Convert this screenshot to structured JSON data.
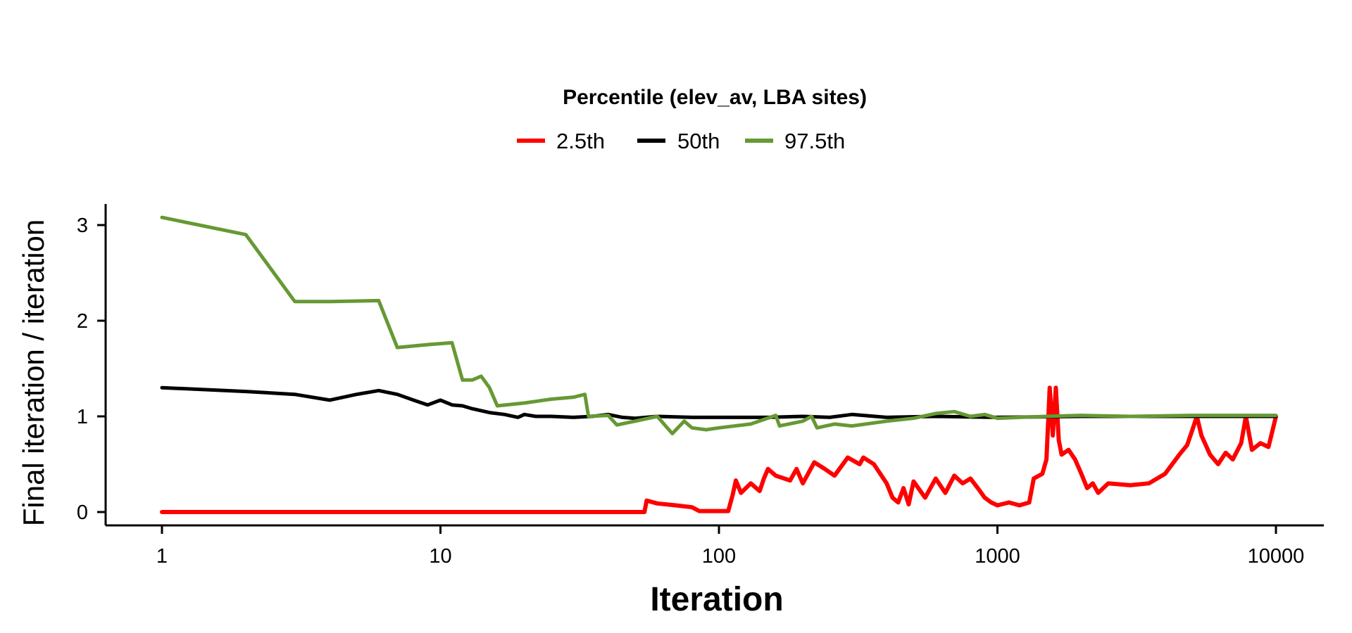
{
  "chart_data": {
    "type": "line",
    "title": "",
    "xlabel": "Iteration",
    "ylabel": "Final iteration / iteration",
    "x_scale": "log",
    "xlim": [
      1,
      10000
    ],
    "ylim": [
      0,
      3.2
    ],
    "x_ticks": [
      1,
      10,
      100,
      1000,
      10000
    ],
    "x_tick_labels": [
      "1",
      "10",
      "100",
      "1000",
      "10000"
    ],
    "y_ticks": [
      0,
      1,
      2,
      3
    ],
    "y_tick_labels": [
      "0",
      "1",
      "2",
      "3"
    ],
    "grid": false,
    "legend": {
      "title": "Percentile (elev_av, LBA sites)",
      "placement": "top-center",
      "entries": [
        "2.5th",
        "50th",
        "97.5th"
      ]
    },
    "series": [
      {
        "name": "2.5th",
        "color": "#ff0000",
        "points": [
          [
            1,
            0
          ],
          [
            50,
            0
          ],
          [
            54,
            0
          ],
          [
            55,
            0.12
          ],
          [
            60,
            0.09
          ],
          [
            70,
            0.07
          ],
          [
            80,
            0.05
          ],
          [
            85,
            0.01
          ],
          [
            108,
            0.01
          ],
          [
            112,
            0.18
          ],
          [
            115,
            0.33
          ],
          [
            120,
            0.2
          ],
          [
            130,
            0.3
          ],
          [
            140,
            0.22
          ],
          [
            145,
            0.35
          ],
          [
            150,
            0.45
          ],
          [
            160,
            0.38
          ],
          [
            180,
            0.33
          ],
          [
            190,
            0.45
          ],
          [
            200,
            0.3
          ],
          [
            220,
            0.52
          ],
          [
            240,
            0.45
          ],
          [
            260,
            0.38
          ],
          [
            290,
            0.57
          ],
          [
            320,
            0.5
          ],
          [
            330,
            0.57
          ],
          [
            360,
            0.5
          ],
          [
            400,
            0.3
          ],
          [
            420,
            0.15
          ],
          [
            440,
            0.1
          ],
          [
            460,
            0.25
          ],
          [
            480,
            0.08
          ],
          [
            500,
            0.32
          ],
          [
            550,
            0.15
          ],
          [
            600,
            0.35
          ],
          [
            650,
            0.2
          ],
          [
            700,
            0.38
          ],
          [
            750,
            0.3
          ],
          [
            800,
            0.35
          ],
          [
            850,
            0.25
          ],
          [
            900,
            0.15
          ],
          [
            950,
            0.1
          ],
          [
            1000,
            0.07
          ],
          [
            1100,
            0.1
          ],
          [
            1200,
            0.07
          ],
          [
            1300,
            0.1
          ],
          [
            1350,
            0.35
          ],
          [
            1450,
            0.4
          ],
          [
            1500,
            0.55
          ],
          [
            1540,
            1.3
          ],
          [
            1580,
            0.8
          ],
          [
            1620,
            1.3
          ],
          [
            1660,
            0.75
          ],
          [
            1700,
            0.6
          ],
          [
            1800,
            0.65
          ],
          [
            1900,
            0.55
          ],
          [
            2000,
            0.4
          ],
          [
            2100,
            0.25
          ],
          [
            2200,
            0.3
          ],
          [
            2300,
            0.2
          ],
          [
            2500,
            0.3
          ],
          [
            3000,
            0.28
          ],
          [
            3500,
            0.3
          ],
          [
            4000,
            0.4
          ],
          [
            4500,
            0.6
          ],
          [
            4800,
            0.7
          ],
          [
            5000,
            0.85
          ],
          [
            5200,
            1.0
          ],
          [
            5400,
            0.8
          ],
          [
            5800,
            0.6
          ],
          [
            6200,
            0.5
          ],
          [
            6600,
            0.62
          ],
          [
            7000,
            0.55
          ],
          [
            7500,
            0.72
          ],
          [
            7800,
            1.0
          ],
          [
            8200,
            0.65
          ],
          [
            8800,
            0.72
          ],
          [
            9400,
            0.68
          ],
          [
            10000,
            1.0
          ]
        ]
      },
      {
        "name": "50th",
        "color": "#000000",
        "points": [
          [
            1,
            1.3
          ],
          [
            2,
            1.26
          ],
          [
            3,
            1.23
          ],
          [
            4,
            1.17
          ],
          [
            5,
            1.23
          ],
          [
            6,
            1.27
          ],
          [
            7,
            1.23
          ],
          [
            8,
            1.17
          ],
          [
            9,
            1.12
          ],
          [
            10,
            1.17
          ],
          [
            11,
            1.12
          ],
          [
            12,
            1.11
          ],
          [
            13,
            1.08
          ],
          [
            15,
            1.04
          ],
          [
            17,
            1.02
          ],
          [
            19,
            0.99
          ],
          [
            20,
            1.02
          ],
          [
            22,
            1.0
          ],
          [
            25,
            1.0
          ],
          [
            30,
            0.99
          ],
          [
            35,
            1.0
          ],
          [
            40,
            1.02
          ],
          [
            45,
            0.99
          ],
          [
            50,
            0.98
          ],
          [
            60,
            1.0
          ],
          [
            80,
            0.99
          ],
          [
            100,
            0.99
          ],
          [
            150,
            0.99
          ],
          [
            200,
            1.0
          ],
          [
            250,
            0.99
          ],
          [
            300,
            1.02
          ],
          [
            400,
            0.99
          ],
          [
            600,
            1.0
          ],
          [
            1000,
            0.99
          ],
          [
            2000,
            1.0
          ],
          [
            5000,
            1.0
          ],
          [
            10000,
            1.0
          ]
        ]
      },
      {
        "name": "97.5th",
        "color": "#669933",
        "points": [
          [
            1,
            3.08
          ],
          [
            2,
            2.9
          ],
          [
            3,
            2.2
          ],
          [
            4,
            2.2
          ],
          [
            6,
            2.21
          ],
          [
            7,
            1.72
          ],
          [
            9,
            1.75
          ],
          [
            11,
            1.77
          ],
          [
            12,
            1.38
          ],
          [
            13,
            1.38
          ],
          [
            14,
            1.42
          ],
          [
            15,
            1.3
          ],
          [
            16,
            1.11
          ],
          [
            20,
            1.14
          ],
          [
            25,
            1.18
          ],
          [
            30,
            1.2
          ],
          [
            33,
            1.23
          ],
          [
            34,
            1.0
          ],
          [
            40,
            1.01
          ],
          [
            43,
            0.91
          ],
          [
            50,
            0.95
          ],
          [
            60,
            1.0
          ],
          [
            68,
            0.82
          ],
          [
            75,
            0.95
          ],
          [
            80,
            0.88
          ],
          [
            90,
            0.86
          ],
          [
            100,
            0.88
          ],
          [
            130,
            0.92
          ],
          [
            160,
            1.01
          ],
          [
            165,
            0.9
          ],
          [
            200,
            0.95
          ],
          [
            215,
            1.0
          ],
          [
            225,
            0.88
          ],
          [
            260,
            0.92
          ],
          [
            300,
            0.9
          ],
          [
            400,
            0.95
          ],
          [
            500,
            0.98
          ],
          [
            600,
            1.03
          ],
          [
            700,
            1.05
          ],
          [
            800,
            1.0
          ],
          [
            900,
            1.02
          ],
          [
            1000,
            0.98
          ],
          [
            1200,
            0.99
          ],
          [
            1500,
            1.0
          ],
          [
            2000,
            1.01
          ],
          [
            3000,
            1.0
          ],
          [
            5000,
            1.01
          ],
          [
            10000,
            1.01
          ]
        ]
      }
    ]
  }
}
